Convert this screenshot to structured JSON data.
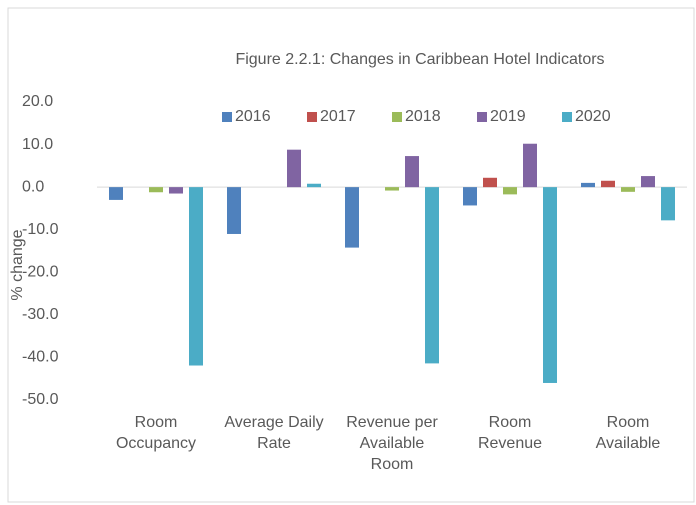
{
  "chart_data": {
    "type": "bar",
    "title": "Figure 2.2.1: Changes in Caribbean Hotel Indicators",
    "y_label": "% change",
    "categories": [
      "Room Occupancy",
      "Average Daily Rate",
      "Revenue per Available Room",
      "Room Revenue",
      "Room Available"
    ],
    "series": [
      {
        "name": "2016",
        "color": "#4f81bd",
        "values": [
          -3.0,
          -11.0,
          -14.2,
          -4.3,
          1.0
        ]
      },
      {
        "name": "2017",
        "color": "#c0504d",
        "values": [
          0,
          0,
          0,
          2.2,
          1.5
        ]
      },
      {
        "name": "2018",
        "color": "#9bbb59",
        "values": [
          -1.2,
          0,
          -0.8,
          -1.7,
          -1.1
        ]
      },
      {
        "name": "2019",
        "color": "#8064a2",
        "values": [
          -1.5,
          8.8,
          7.3,
          10.2,
          2.6
        ]
      },
      {
        "name": "2020",
        "color": "#4bacc6",
        "values": [
          -41.9,
          0.8,
          -41.4,
          -46.0,
          -7.8
        ]
      }
    ],
    "ylim": [
      -50,
      20
    ],
    "yticks": [
      {
        "value": -50,
        "label": "-50.0"
      },
      {
        "value": -40,
        "label": "-40.0"
      },
      {
        "value": -30,
        "label": "-30.0"
      },
      {
        "value": -20,
        "label": "-20.0"
      },
      {
        "value": -10,
        "label": "-10.0"
      },
      {
        "value": 0,
        "label": "0.0"
      },
      {
        "value": 10,
        "label": "10.0"
      },
      {
        "value": 20,
        "label": "20.0"
      }
    ],
    "grid": false,
    "legend": "top"
  }
}
